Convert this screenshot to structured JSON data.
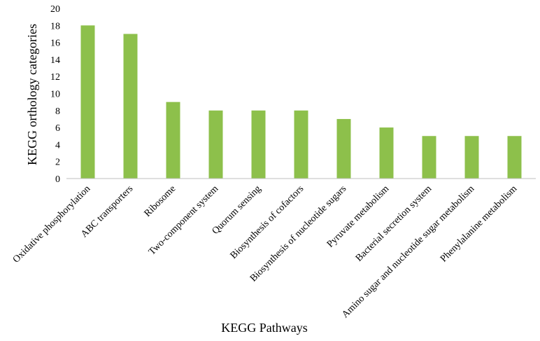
{
  "chart_data": {
    "type": "bar",
    "title": "",
    "xlabel": "KEGG Pathways",
    "ylabel": "KEGG orthology  categories",
    "categories": [
      "Oxidative phosphorylation",
      "ABC transporters",
      "Ribosome",
      "Two-component system",
      "Quorum sensing",
      "Biosynthesis of cofactors",
      "Biosynthesis of nucleotide sugars",
      "Pyruvate metabolism",
      "Bacterial secretion system",
      "Amino sugar and nucleotide sugar metabolism",
      "Phenylalanine metabolism"
    ],
    "values": [
      18,
      17,
      9,
      8,
      8,
      8,
      7,
      6,
      5,
      5,
      5
    ],
    "ylim": [
      0,
      20
    ],
    "yticks": [
      0,
      2,
      4,
      6,
      8,
      10,
      12,
      14,
      16,
      18,
      20
    ],
    "grid": false,
    "legend": "none",
    "bar_color": "#8DC04B"
  }
}
